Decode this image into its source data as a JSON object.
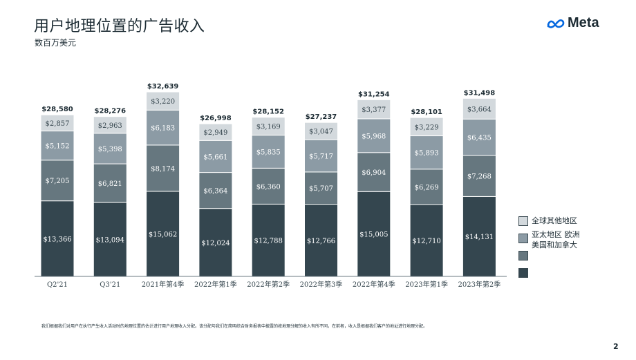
{
  "slide": {
    "title": "用户地理位置的广告收入",
    "subtitle": "数百万美元",
    "logo_text": "Meta",
    "footnote": "我们根据我们对用户在执行产生收入活动时的地理位置的估计进行用户地理收入分配。该分配与我们在简明综合财务报表中披露的按地理分解的收入有所不同，在前者，收入是根据我们客户的地址进行地理分配。",
    "page_number": "2"
  },
  "colors": {
    "rest_of_world": "#d3d9dd",
    "asia_pacific": "#8c9ba5",
    "europe": "#66777f",
    "us_canada": "#34464f",
    "text_dark": "#1c2b33",
    "logo_blue": "#0467df"
  },
  "chart_data": {
    "type": "bar",
    "stacked": true,
    "categories": [
      "Q2'21",
      "Q3'21",
      "2021年第4季",
      "2022年第1季",
      "2022年第2季",
      "2022年第3季",
      "2022年第4季",
      "2023年第1季",
      "2023年第2季"
    ],
    "totals": [
      "$28,580",
      "$28,276",
      "$32,639",
      "$26,998",
      "$28,152",
      "$27,237",
      "$31,254",
      "$28,101",
      "$31,498"
    ],
    "series": [
      {
        "key": "us_canada",
        "values": [
          13366,
          13094,
          15062,
          12024,
          12788,
          12766,
          15005,
          12710,
          14131
        ]
      },
      {
        "key": "europe",
        "values": [
          7205,
          6821,
          8174,
          6364,
          6360,
          5707,
          6904,
          6269,
          7268
        ]
      },
      {
        "key": "asia_pacific",
        "values": [
          5152,
          5398,
          6183,
          5661,
          5835,
          5717,
          5968,
          5893,
          6435
        ]
      },
      {
        "key": "rest_of_world",
        "name": "全球其他地区",
        "values": [
          2857,
          2963,
          3220,
          2949,
          3169,
          3047,
          3377,
          3229,
          3664
        ]
      }
    ],
    "legend": [
      "全球其他地区",
      "亚太地区 欧洲",
      "美国和加拿大",
      ""
    ],
    "legend_placement": "right",
    "grid": false
  }
}
